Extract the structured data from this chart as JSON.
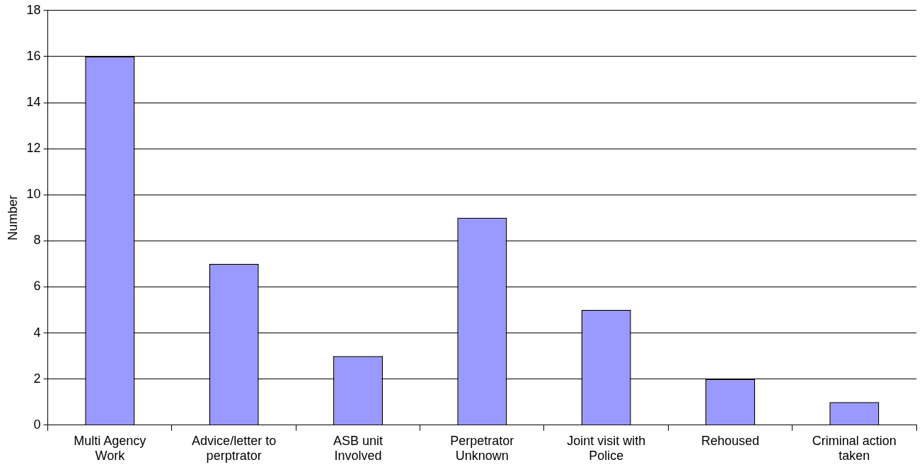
{
  "chart_data": {
    "type": "bar",
    "ylabel": "Number",
    "categories": [
      "Multi Agency Work",
      "Advice/letter to perptrator",
      "ASB unit Involved",
      "Perpetrator Unknown",
      "Joint visit with Police",
      "Rehoused",
      "Criminal action taken"
    ],
    "values": [
      16,
      7,
      3,
      9,
      5,
      2,
      1
    ],
    "color": "#9999ff",
    "ylim": [
      0,
      18
    ],
    "yticks": [
      0,
      2,
      4,
      6,
      8,
      10,
      12,
      14,
      16,
      18
    ],
    "grid": "y",
    "legend": false
  }
}
